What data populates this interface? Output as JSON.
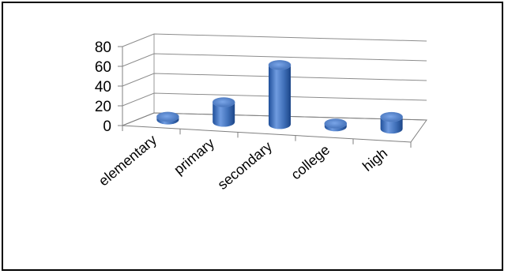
{
  "chart_data": {
    "type": "bar",
    "style": "3d-cylinder",
    "categories": [
      "elementary",
      "primary",
      "secondary",
      "college",
      "high"
    ],
    "values": [
      3,
      20,
      60,
      3,
      12
    ],
    "ylim": [
      0,
      80
    ],
    "yticks": [
      0,
      20,
      40,
      60,
      80
    ],
    "title": "",
    "xlabel": "",
    "ylabel": "",
    "grid": true,
    "legend": "none",
    "bar_color": "#3f6fb8"
  }
}
